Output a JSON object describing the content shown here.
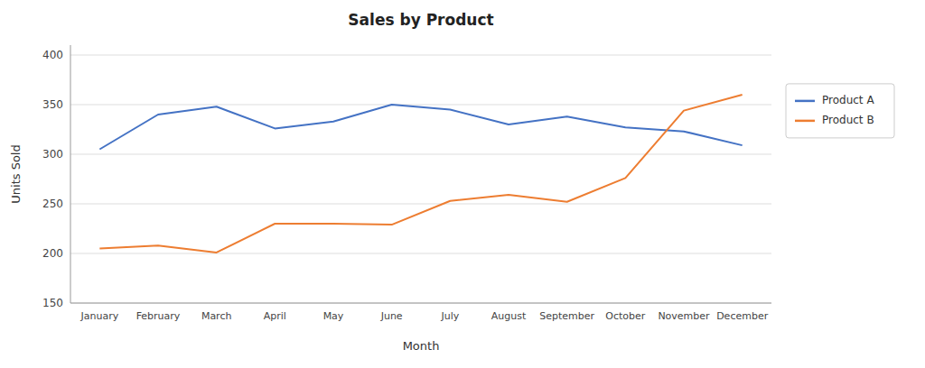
{
  "chart_data": {
    "type": "line",
    "title": "Sales by Product",
    "xlabel": "Month",
    "ylabel": "Units Sold",
    "categories": [
      "January",
      "February",
      "March",
      "April",
      "May",
      "June",
      "July",
      "August",
      "September",
      "October",
      "November",
      "December"
    ],
    "series": [
      {
        "name": "Product A",
        "color": "#4472C4",
        "values": [
          305,
          340,
          348,
          326,
          333,
          350,
          345,
          330,
          338,
          327,
          323,
          309
        ]
      },
      {
        "name": "Product B",
        "color": "#ED7D31",
        "values": [
          205,
          208,
          201,
          230,
          230,
          229,
          253,
          259,
          252,
          276,
          344,
          360
        ]
      }
    ],
    "ylim": [
      150,
      410
    ],
    "yticks": [
      150,
      200,
      250,
      300,
      350,
      400
    ],
    "grid": true,
    "legend": "right"
  }
}
